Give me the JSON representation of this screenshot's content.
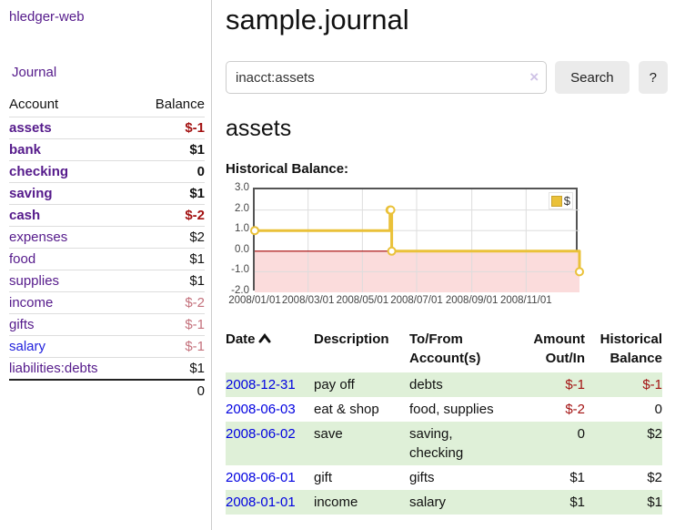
{
  "sidebar": {
    "brand": "hledger-web",
    "journal_link": "Journal",
    "accounts_header": {
      "account": "Account",
      "balance": "Balance"
    },
    "accounts": [
      {
        "name": "assets",
        "balance": "$-1",
        "depth": 1,
        "selected": true,
        "unvisited": false
      },
      {
        "name": "bank",
        "balance": "$1",
        "depth": 2,
        "selected": true,
        "unvisited": false
      },
      {
        "name": "checking",
        "balance": "0",
        "depth": 3,
        "selected": true,
        "unvisited": false
      },
      {
        "name": "saving",
        "balance": "$1",
        "depth": 3,
        "selected": true,
        "unvisited": false
      },
      {
        "name": "cash",
        "balance": "$-2",
        "depth": 2,
        "selected": true,
        "unvisited": false
      },
      {
        "name": "expenses",
        "balance": "$2",
        "depth": 1,
        "selected": false,
        "unvisited": false
      },
      {
        "name": "food",
        "balance": "$1",
        "depth": 2,
        "selected": false,
        "unvisited": false
      },
      {
        "name": "supplies",
        "balance": "$1",
        "depth": 2,
        "selected": false,
        "unvisited": false
      },
      {
        "name": "income",
        "balance": "$-2",
        "depth": 1,
        "selected": false,
        "unvisited": false
      },
      {
        "name": "gifts",
        "balance": "$-1",
        "depth": 2,
        "selected": false,
        "unvisited": false
      },
      {
        "name": "salary",
        "balance": "$-1",
        "depth": 2,
        "selected": false,
        "unvisited": true
      },
      {
        "name": "liabilities:debts",
        "balance": "$1",
        "depth": 1,
        "selected": false,
        "unvisited": false
      }
    ],
    "total": "0"
  },
  "header": {
    "title": "sample.journal"
  },
  "search": {
    "query": "inacct:assets",
    "clear_icon": "×",
    "search_button": "Search",
    "help_button": "?"
  },
  "register": {
    "heading": "assets",
    "chart_label": "Historical Balance:",
    "columns": {
      "date": "Date",
      "description": "Description",
      "accounts": "To/From\nAccount(s)",
      "amount": "Amount\nOut/In",
      "balance": "Historical\nBalance"
    },
    "rows": [
      {
        "date": "2008-12-31",
        "description": "pay off",
        "accounts": "debts",
        "amount": "$-1",
        "balance": "$-1"
      },
      {
        "date": "2008-06-03",
        "description": "eat & shop",
        "accounts": "food, supplies",
        "amount": "$-2",
        "balance": "0"
      },
      {
        "date": "2008-06-02",
        "description": "save",
        "accounts": "saving,\nchecking",
        "amount": "0",
        "balance": "$2"
      },
      {
        "date": "2008-06-01",
        "description": "gift",
        "accounts": "gifts",
        "amount": "$1",
        "balance": "$2"
      },
      {
        "date": "2008-01-01",
        "description": "income",
        "accounts": "salary",
        "amount": "$1",
        "balance": "$1"
      }
    ]
  },
  "chart_data": {
    "type": "line",
    "step": true,
    "title": "Historical Balance",
    "series": [
      {
        "name": "$",
        "points": [
          [
            "2008-01-01",
            1
          ],
          [
            "2008-06-01",
            2
          ],
          [
            "2008-06-02",
            2
          ],
          [
            "2008-06-03",
            0
          ],
          [
            "2008-12-31",
            -1
          ]
        ]
      }
    ],
    "x_ticks": [
      "2008/01/01",
      "2008/03/01",
      "2008/05/01",
      "2008/07/01",
      "2008/09/01",
      "2008/11/01"
    ],
    "y_ticks": [
      "3.0",
      "2.0",
      "1.0",
      "0.0",
      "-1.0",
      "-2.0"
    ],
    "ylim": [
      -2,
      3
    ],
    "grid": true,
    "legend": {
      "label": "$",
      "position": "top-right"
    }
  },
  "colors": {
    "link_purple": "#551a8b",
    "link_blue": "#2222dd",
    "date_blue": "#0000e0",
    "negative_strong": "#a31212",
    "negative_soft": "#c4717c",
    "stripe_green": "#dff0d8",
    "chart_line": "#eac139",
    "chart_negative_bg": "#fbdcdc",
    "chart_zero_line": "#a40000",
    "chart_border": "#545454"
  }
}
